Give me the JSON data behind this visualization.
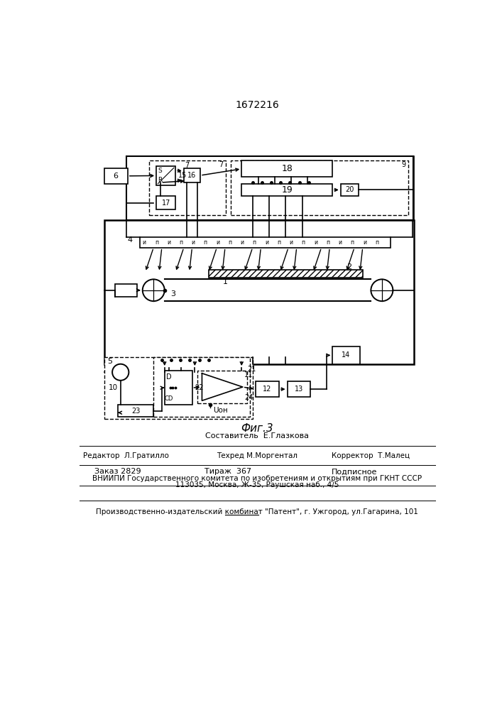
{
  "title": "1672216",
  "fig_label": "Фиг.3",
  "bg": "#ffffff",
  "footer": {
    "composer": "Составитель  Е.Глазкова",
    "editor": "Редактор  Л.Гратилло",
    "techred": "Техред М.Моргентал",
    "corrector": "Корректор  Т.Малец",
    "order": "Заказ 2829",
    "tirazh": "Тираж  367",
    "podpisnoe": "Подписное",
    "vniipи": "ВНИИПИ Государственного комитета по изобретениям и открытиям при ГКНТ СССР",
    "address": "113035, Москва, Ж-35, Раушская наб., 4/5",
    "producer": "Производственно-издательский комбинат \"Патент\", г. Ужгород, ул.Гагарина, 101"
  },
  "sensor_pattern": [
    "и",
    "п",
    "и",
    "п",
    "и",
    "п",
    "и",
    "п",
    "и",
    "п",
    "и",
    "п",
    "и",
    "п",
    "и",
    "п",
    "и",
    "п",
    "и",
    "п"
  ]
}
